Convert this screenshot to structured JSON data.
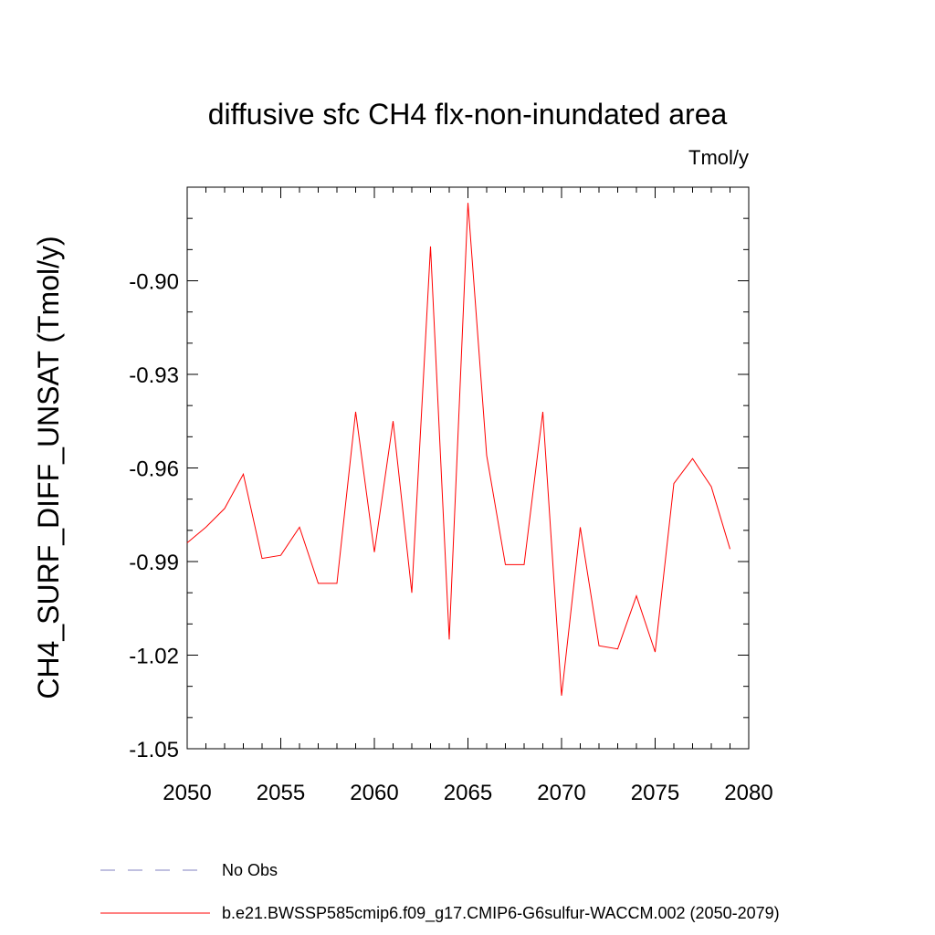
{
  "chart_data": {
    "type": "line",
    "title": "diffusive sfc CH4 flx-non-inundated area",
    "units": "Tmol/y",
    "ylabel": "CH4_SURF_DIFF_UNSAT  (Tmol/y)",
    "xlabel": "",
    "xlim": [
      2050,
      2080
    ],
    "ylim": [
      -1.05,
      -0.87
    ],
    "xticks": [
      2050,
      2055,
      2060,
      2065,
      2070,
      2075,
      2080
    ],
    "xtick_labels": [
      "2050",
      "2055",
      "2060",
      "2065",
      "2070",
      "2075",
      "2080"
    ],
    "yticks": [
      -1.05,
      -1.02,
      -0.99,
      -0.96,
      -0.93,
      -0.9
    ],
    "ytick_labels": [
      "-1.05",
      "-1.02",
      "-0.99",
      "-0.96",
      "-0.93",
      "-0.90"
    ],
    "grid": false,
    "legend_position": "bottom",
    "series": [
      {
        "name": "b.e21.BWSSP585cmip6.f09_g17.CMIP6-G6sulfur-WACCM.002 (2050-2079)",
        "color": "#ff0000",
        "style": "solid",
        "x": [
          2050,
          2051,
          2052,
          2053,
          2054,
          2055,
          2056,
          2057,
          2058,
          2059,
          2060,
          2061,
          2062,
          2063,
          2064,
          2065,
          2066,
          2067,
          2068,
          2069,
          2070,
          2071,
          2072,
          2073,
          2074,
          2075,
          2076,
          2077,
          2078,
          2079
        ],
        "y": [
          -0.984,
          -0.979,
          -0.973,
          -0.962,
          -0.989,
          -0.988,
          -0.979,
          -0.997,
          -0.997,
          -0.942,
          -0.987,
          -0.945,
          -1.0,
          -0.889,
          -1.015,
          -0.875,
          -0.956,
          -0.991,
          -0.991,
          -0.942,
          -1.033,
          -0.979,
          -1.017,
          -1.018,
          -1.001,
          -1.019,
          -0.965,
          -0.957,
          -0.966,
          -0.986
        ]
      },
      {
        "name": "No Obs",
        "color": "#8080c0",
        "style": "dashed",
        "x": [],
        "y": []
      }
    ]
  }
}
